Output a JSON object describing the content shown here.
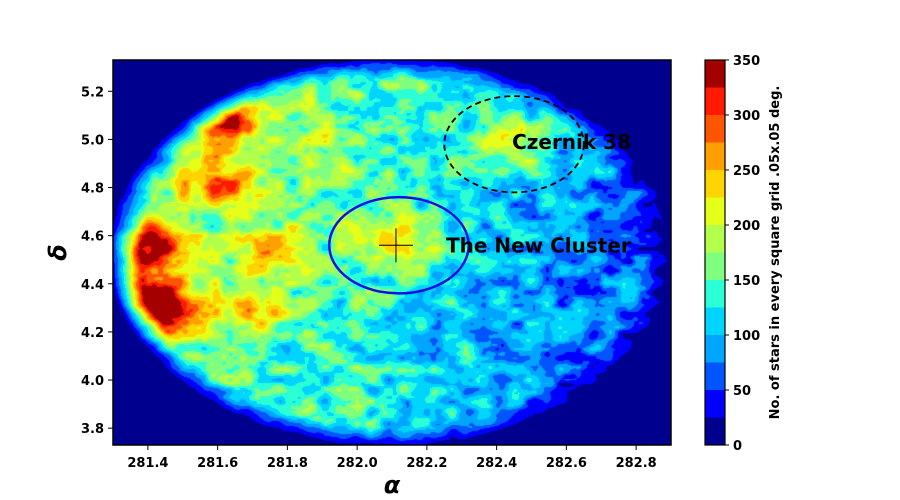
{
  "chart_data": {
    "type": "heatmap",
    "xlabel": "α",
    "ylabel": "δ",
    "xlim": [
      281.3,
      282.9
    ],
    "ylim": [
      3.73,
      5.33
    ],
    "x_ticks": [
      "281.4",
      "281.6",
      "281.8",
      "282.0",
      "282.2",
      "282.4",
      "282.6",
      "282.8"
    ],
    "y_ticks": [
      "3.8",
      "4.0",
      "4.2",
      "4.4",
      "4.6",
      "4.8",
      "5.0",
      "5.2"
    ],
    "colorbar": {
      "label": "No. of stars in every square grid  .05x.05  deg.",
      "range": [
        0,
        350
      ],
      "ticks": [
        "0",
        "50",
        "100",
        "150",
        "200",
        "250",
        "300",
        "350"
      ],
      "levels": [
        0,
        25,
        50,
        75,
        100,
        125,
        150,
        175,
        200,
        225,
        250,
        275,
        300,
        325,
        350
      ],
      "colors": [
        "#00008f",
        "#0000ff",
        "#0055ff",
        "#00a5ff",
        "#00d5ff",
        "#2affd5",
        "#7fff7f",
        "#b2ff4c",
        "#e5ff19",
        "#ffd400",
        "#ff9f00",
        "#ff5500",
        "#ff1a00",
        "#a50000"
      ]
    },
    "hotspots": [
      {
        "x": 281.42,
        "y": 4.55,
        "value": 330
      },
      {
        "x": 281.37,
        "y": 4.35,
        "value": 290
      },
      {
        "x": 281.45,
        "y": 4.28,
        "value": 320
      },
      {
        "x": 281.62,
        "y": 5.08,
        "value": 280
      },
      {
        "x": 281.6,
        "y": 4.82,
        "value": 260
      },
      {
        "x": 281.75,
        "y": 4.55,
        "value": 220
      },
      {
        "x": 281.7,
        "y": 4.3,
        "value": 230
      },
      {
        "x": 282.12,
        "y": 4.58,
        "value": 230
      },
      {
        "x": 282.45,
        "y": 4.99,
        "value": 220
      },
      {
        "x": 281.9,
        "y": 4.95,
        "value": 160
      }
    ],
    "annotations": [
      {
        "text": "Czernik 38",
        "x": 282.45,
        "y": 4.98,
        "shape": "dashed-ellipse",
        "rx": 0.2,
        "ry": 0.2,
        "color": "#000000"
      },
      {
        "text": "The New Cluster",
        "x": 282.12,
        "y": 4.56,
        "shape": "solid-ellipse",
        "rx": 0.2,
        "ry": 0.2,
        "color": "#1010e0"
      }
    ]
  }
}
